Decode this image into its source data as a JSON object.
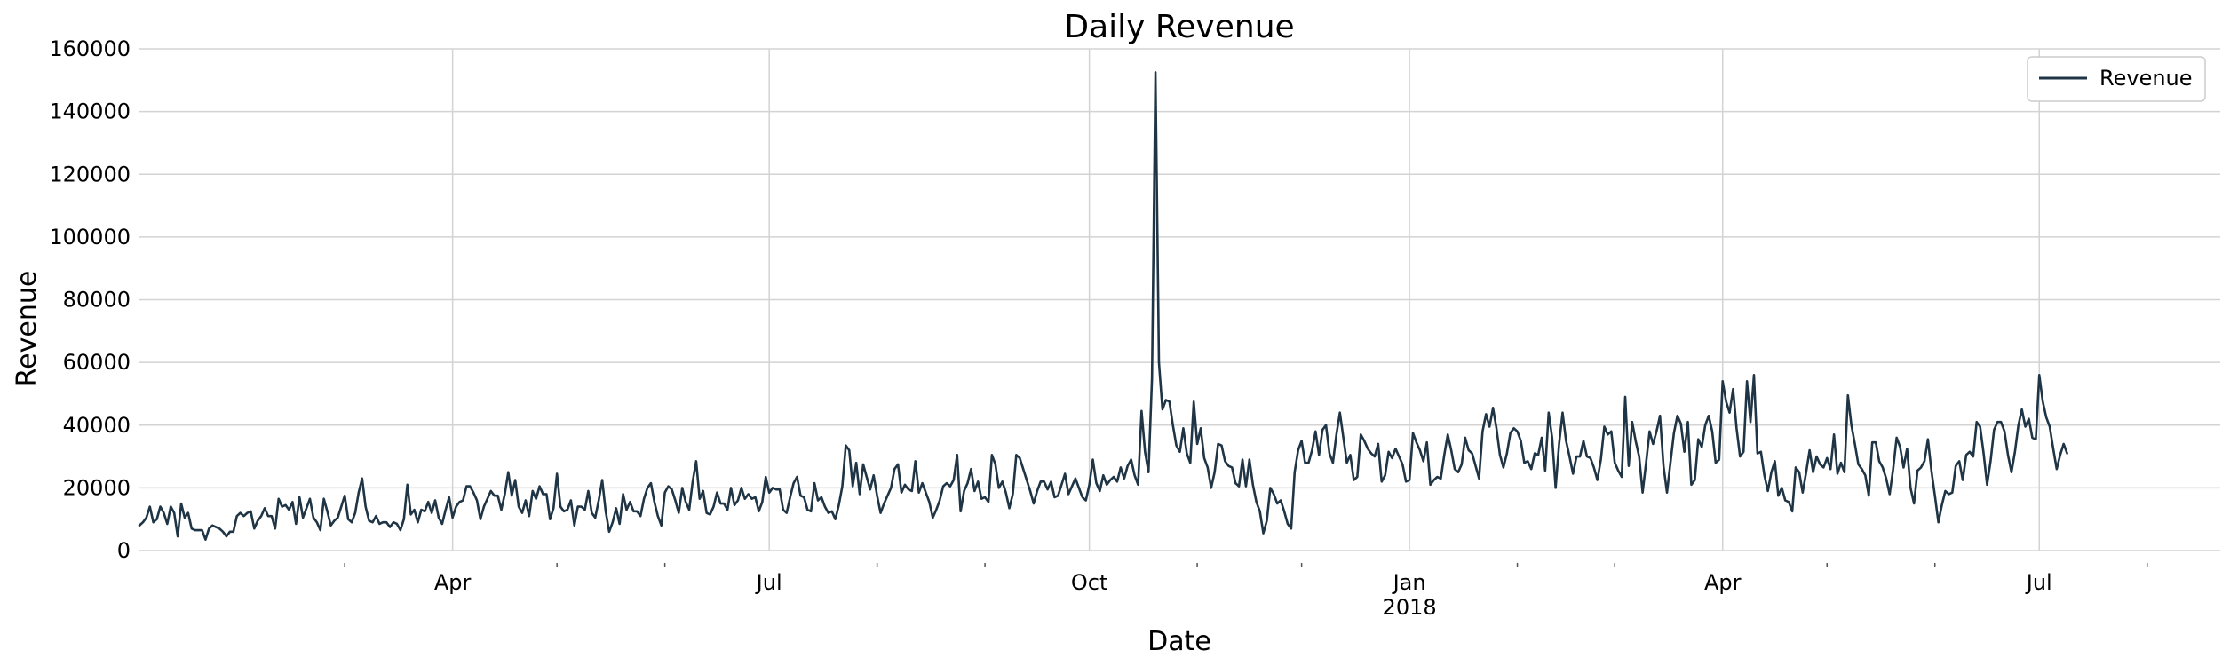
{
  "chart_data": {
    "type": "line",
    "title": "Daily Revenue",
    "xlabel": "Date",
    "ylabel": "Revenue",
    "ylim": [
      0,
      160000
    ],
    "xlim": [
      "2017-01-01",
      "2018-08-22"
    ],
    "grid": true,
    "legend": {
      "placement": "top-right",
      "entries": [
        "Revenue"
      ]
    },
    "colors": {
      "line": "#1f3545",
      "grid": "#d3d3d3",
      "legend_border": "#cccccc"
    },
    "y_ticks": [
      0,
      20000,
      40000,
      60000,
      80000,
      100000,
      120000,
      140000,
      160000
    ],
    "x_major_ticks": [
      {
        "date": "2017-04-01",
        "label": "Apr",
        "sublabel": ""
      },
      {
        "date": "2017-07-01",
        "label": "Jul",
        "sublabel": ""
      },
      {
        "date": "2017-10-01",
        "label": "Oct",
        "sublabel": ""
      },
      {
        "date": "2018-01-01",
        "label": "Jan",
        "sublabel": "2018"
      },
      {
        "date": "2018-04-01",
        "label": "Apr",
        "sublabel": ""
      },
      {
        "date": "2018-07-01",
        "label": "Jul",
        "sublabel": ""
      }
    ],
    "x_minor_ticks": [
      "2017-03-01",
      "2017-05-01",
      "2017-06-01",
      "2017-08-01",
      "2017-09-01",
      "2017-11-01",
      "2017-12-01",
      "2018-02-01",
      "2018-03-01",
      "2018-05-01",
      "2018-06-01",
      "2018-08-01"
    ],
    "series": [
      {
        "name": "Revenue",
        "x_start": "2017-01-01",
        "x_step": "1 day",
        "values": [
          8000,
          9000,
          10500,
          14000,
          9000,
          10000,
          14000,
          12000,
          8500,
          14000,
          12000,
          4500,
          15000,
          10500,
          12000,
          7000,
          6500,
          6500,
          6500,
          3500,
          7000,
          8000,
          7500,
          7000,
          6000,
          4500,
          6000,
          6000,
          11000,
          12000,
          11000,
          12000,
          12500,
          7000,
          9500,
          11000,
          13500,
          11000,
          11000,
          7000,
          16500,
          14000,
          14500,
          13000,
          15500,
          8500,
          17000,
          10500,
          13500,
          16500,
          10500,
          9000,
          6500,
          16500,
          12500,
          8000,
          9500,
          10500,
          14000,
          17500,
          10000,
          9000,
          12000,
          18500,
          23000,
          14000,
          9500,
          9000,
          11000,
          8500,
          9000,
          9000,
          7500,
          9000,
          8500,
          6500,
          10000,
          21000,
          11500,
          13000,
          9000,
          13000,
          12500,
          15500,
          12000,
          16000,
          10500,
          8500,
          13000,
          17000,
          10500,
          14000,
          15500,
          16000,
          20500,
          20500,
          18500,
          16000,
          10000,
          14000,
          16500,
          19000,
          17500,
          17500,
          13000,
          18000,
          25000,
          17500,
          22500,
          14000,
          12000,
          16000,
          11000,
          19000,
          16500,
          20500,
          18000,
          18000,
          10000,
          13500,
          24500,
          14000,
          12500,
          13000,
          16000,
          8000,
          14000,
          14000,
          13000,
          19000,
          12000,
          10500,
          16000,
          22500,
          12500,
          6000,
          9000,
          13500,
          8500,
          18000,
          13000,
          15500,
          12500,
          12500,
          11000,
          16500,
          20000,
          21500,
          15500,
          11000,
          8000,
          18500,
          20500,
          19500,
          16000,
          12000,
          20000,
          15500,
          13000,
          22000,
          28500,
          16500,
          19000,
          12000,
          11500,
          14000,
          18500,
          15000,
          15000,
          13000,
          20000,
          14500,
          16000,
          20000,
          16500,
          18000,
          16500,
          17000,
          12500,
          15500,
          23500,
          18500,
          20000,
          19500,
          19500,
          13000,
          12000,
          17000,
          21500,
          23500,
          17500,
          17000,
          13000,
          12500,
          21500,
          16000,
          17000,
          14000,
          12000,
          12500,
          10000,
          14500,
          20500,
          33500,
          32000,
          20500,
          28000,
          18000,
          27500,
          23500,
          19500,
          24000,
          17500,
          12000,
          15000,
          17500,
          20000,
          26000,
          27500,
          18500,
          21000,
          19500,
          19000,
          28500,
          18500,
          21500,
          18500,
          15500,
          10500,
          13000,
          16000,
          20500,
          21500,
          20500,
          22500,
          30500,
          12500,
          19000,
          21500,
          26000,
          19000,
          22000,
          16500,
          17000,
          15500,
          30500,
          27500,
          20000,
          22000,
          18500,
          13500,
          18000,
          30500,
          29500,
          26000,
          22500,
          19000,
          15000,
          19000,
          22000,
          22000,
          19500,
          22000,
          17000,
          17500,
          21000,
          24500,
          18000,
          20500,
          23000,
          20000,
          17000,
          16000,
          21000,
          29000,
          21500,
          19000,
          24000,
          21000,
          22500,
          23500,
          22000,
          26500,
          23000,
          27000,
          29000,
          24000,
          21000,
          44500,
          31500,
          25000,
          55000,
          152500,
          60000,
          45000,
          48000,
          47500,
          40000,
          33500,
          31500,
          39000,
          31000,
          28000,
          47500,
          34000,
          39000,
          29500,
          26500,
          20000,
          25000,
          34000,
          33500,
          28500,
          27000,
          26500,
          21500,
          20500,
          29000,
          20500,
          29000,
          21000,
          15500,
          12500,
          5500,
          9500,
          20000,
          18000,
          15000,
          16000,
          12500,
          8500,
          7000,
          25000,
          32000,
          35000,
          28000,
          28000,
          32000,
          38000,
          30500,
          38500,
          40000,
          31000,
          28000,
          37000,
          44000,
          36000,
          28000,
          30500,
          22500,
          23500,
          37000,
          35000,
          32500,
          31000,
          30000,
          34000,
          22000,
          24000,
          31500,
          29500,
          32500,
          30000,
          27500,
          22000,
          22500,
          37500,
          34500,
          32000,
          28500,
          34500,
          21000,
          22500,
          23500,
          23000,
          30500,
          37000,
          32000,
          26000,
          25000,
          27500,
          36000,
          32000,
          31000,
          27000,
          23000,
          38000,
          43500,
          39500,
          45500,
          39000,
          30500,
          26500,
          31000,
          37500,
          39000,
          38000,
          35000,
          28000,
          28500,
          26000,
          31000,
          30500,
          36000,
          25500,
          44000,
          36000,
          20000,
          34000,
          44000,
          35000,
          30000,
          24500,
          30000,
          30000,
          35000,
          30000,
          29500,
          26500,
          22500,
          29000,
          39500,
          37000,
          38000,
          28000,
          25500,
          23500,
          49000,
          27000,
          41000,
          35000,
          30000,
          18500,
          28000,
          38000,
          34000,
          38000,
          43000,
          27000,
          18500,
          28000,
          37500,
          43000,
          40500,
          31500,
          41000,
          21000,
          22500,
          35500,
          33000,
          40000,
          43000,
          38000,
          28000,
          29000,
          54000,
          47500,
          44000,
          51500,
          39000,
          30000,
          31500,
          54000,
          41000,
          56000,
          31000,
          31500,
          24000,
          19000,
          25000,
          28500,
          17500,
          20000,
          16000,
          15500,
          12500,
          26500,
          25000,
          18500,
          25000,
          32000,
          25000,
          30000,
          27500,
          26500,
          29500,
          26000,
          37000,
          24500,
          28000,
          25000,
          49500,
          40000,
          34000,
          27500,
          26000,
          24000,
          17500,
          34500,
          34500,
          28500,
          26500,
          23000,
          18000,
          26000,
          36000,
          33000,
          26500,
          32500,
          20000,
          15000,
          25500,
          26500,
          28500,
          35500,
          25500,
          17500,
          9000,
          14500,
          19000,
          18000,
          18500,
          27000,
          28500,
          22500,
          30500,
          31500,
          30000,
          41000,
          39500,
          31000,
          21000,
          28500,
          38500,
          41000,
          41000,
          38000,
          30500,
          25000,
          31500,
          40000,
          45000,
          39500,
          42000,
          36000,
          35500,
          56000,
          47500,
          42500,
          39500,
          32500,
          26000,
          30500,
          34000,
          31000
        ]
      }
    ]
  }
}
